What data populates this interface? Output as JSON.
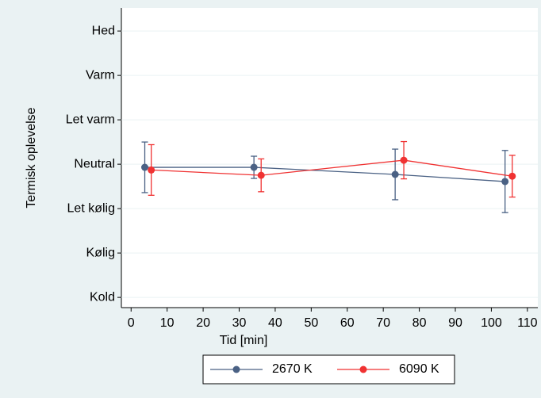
{
  "chart_data": {
    "type": "line",
    "x_label": "Tid [min]",
    "y_label": "Termisk oplevelse",
    "xlim": [
      -2.7,
      112.9
    ],
    "xticks": [
      0,
      10,
      20,
      30,
      40,
      50,
      60,
      70,
      80,
      90,
      100,
      110
    ],
    "ylim": [
      -3.23,
      3.52
    ],
    "yticks": [
      {
        "value": -3,
        "label": "Kold"
      },
      {
        "value": -2,
        "label": "Kølig"
      },
      {
        "value": -1,
        "label": "Let kølig"
      },
      {
        "value": 0,
        "label": "Neutral"
      },
      {
        "value": 1,
        "label": "Let varm"
      },
      {
        "value": 2,
        "label": "Varm"
      },
      {
        "value": 3,
        "label": "Hed"
      }
    ],
    "grid": true,
    "legend": "bottom",
    "series": [
      {
        "name": "2670 K",
        "color": "#4a6184",
        "x": [
          3.8,
          34.1,
          73.3,
          103.8
        ],
        "values": [
          -0.07,
          -0.07,
          -0.23,
          -0.39
        ],
        "errors": [
          0.57,
          0.25,
          0.57,
          0.7
        ]
      },
      {
        "name": "6090 K",
        "color": "#f03232",
        "x": [
          5.6,
          36.1,
          75.7,
          105.8
        ],
        "values": [
          -0.13,
          -0.25,
          0.09,
          -0.27
        ],
        "errors": [
          0.57,
          0.37,
          0.42,
          0.47
        ]
      }
    ]
  }
}
